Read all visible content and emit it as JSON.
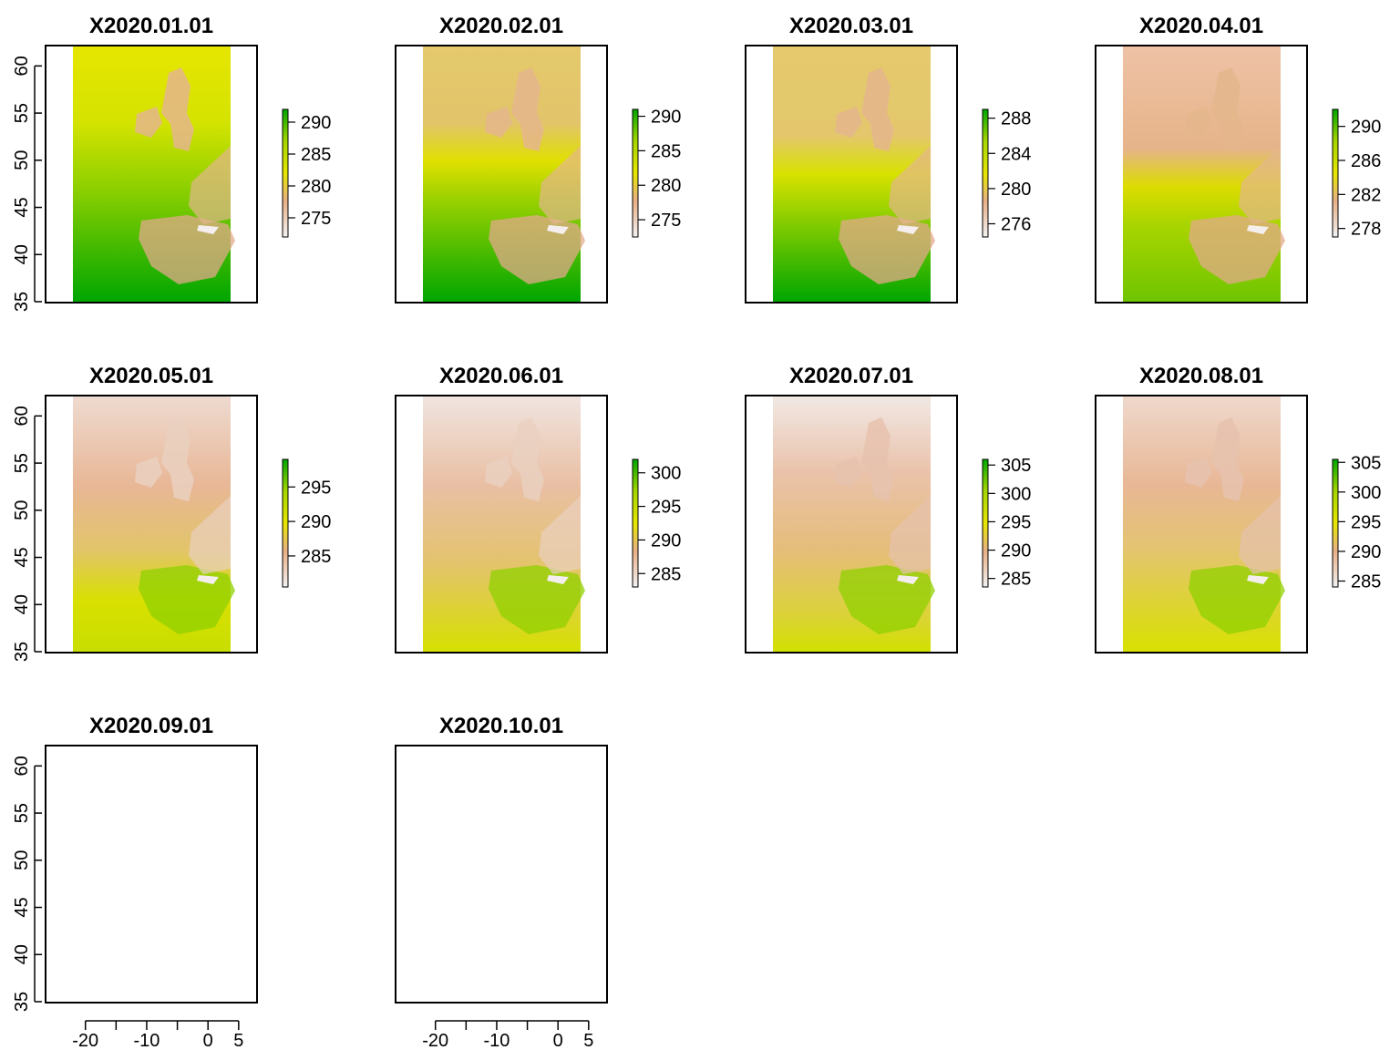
{
  "chart_data": [
    {
      "type": "heatmap",
      "title": "X2020.01.01",
      "has_data": true,
      "legend_ticks": [
        275,
        280,
        285,
        290
      ],
      "legend_range": [
        272,
        292
      ]
    },
    {
      "type": "heatmap",
      "title": "X2020.02.01",
      "has_data": true,
      "legend_ticks": [
        275,
        280,
        285,
        290
      ],
      "legend_range": [
        272.5,
        291
      ]
    },
    {
      "type": "heatmap",
      "title": "X2020.03.01",
      "has_data": true,
      "legend_ticks": [
        276,
        280,
        284,
        288
      ],
      "legend_range": [
        274.5,
        289
      ]
    },
    {
      "type": "heatmap",
      "title": "X2020.04.01",
      "has_data": true,
      "legend_ticks": [
        278,
        282,
        286,
        290
      ],
      "legend_range": [
        277,
        292
      ]
    },
    {
      "type": "heatmap",
      "title": "X2020.05.01",
      "has_data": true,
      "legend_ticks": [
        285,
        290,
        295
      ],
      "legend_range": [
        280.5,
        299
      ]
    },
    {
      "type": "heatmap",
      "title": "X2020.06.01",
      "has_data": true,
      "legend_ticks": [
        285,
        290,
        295,
        300
      ],
      "legend_range": [
        283,
        302
      ]
    },
    {
      "type": "heatmap",
      "title": "X2020.07.01",
      "has_data": true,
      "legend_ticks": [
        285,
        290,
        295,
        300,
        305
      ],
      "legend_range": [
        283.5,
        306
      ]
    },
    {
      "type": "heatmap",
      "title": "X2020.08.01",
      "has_data": true,
      "legend_ticks": [
        285,
        290,
        295,
        300,
        305
      ],
      "legend_range": [
        284,
        305.5
      ]
    },
    {
      "type": "heatmap",
      "title": "X2020.09.01",
      "has_data": false
    },
    {
      "type": "heatmap",
      "title": "X2020.10.01",
      "has_data": false
    }
  ],
  "axes": {
    "x_ticks": [
      -20,
      -10,
      0,
      5
    ],
    "x_minor_ticks": [
      -15,
      -5
    ],
    "x_range": [
      -26.5,
      8
    ],
    "y_ticks": [
      35,
      40,
      45,
      50,
      55,
      60
    ],
    "y_range": [
      35,
      61
    ]
  },
  "colors": {
    "low": "#f2f2f2",
    "mid_low": "#e9b087",
    "mid": "#e5c96c",
    "mid_high": "#e6e600",
    "high_low": "#a6d600",
    "high": "#00a600"
  }
}
